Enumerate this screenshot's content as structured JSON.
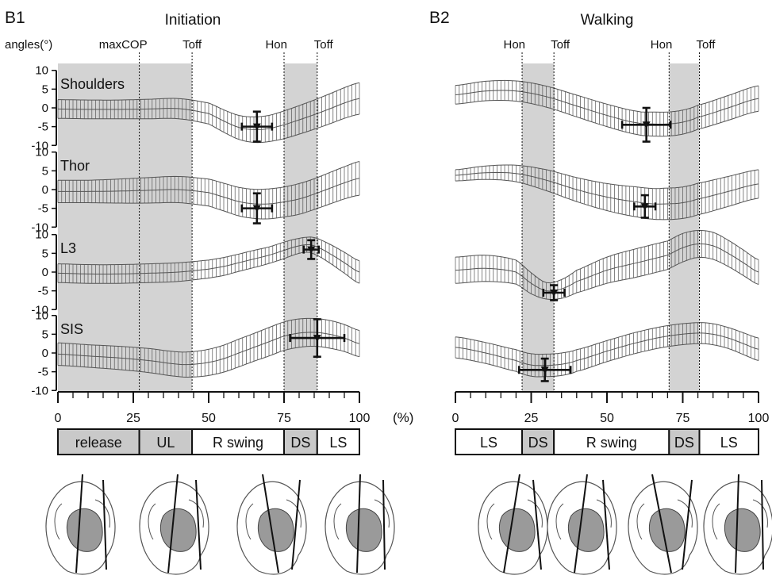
{
  "panels": [
    {
      "label": "B1",
      "title": "Initiation",
      "yaxis_label": "angles(°)",
      "events": [
        {
          "label": "maxCOP",
          "x": 27
        },
        {
          "label": "Toff",
          "x": 44.5
        },
        {
          "label": "Hon",
          "x": 75
        },
        {
          "label": "Toff",
          "x": 86
        }
      ],
      "shaded_x": [
        [
          0,
          44.5
        ],
        [
          75,
          86
        ]
      ],
      "phases": [
        {
          "label": "release",
          "from": 0,
          "to": 27,
          "shaded": true
        },
        {
          "label": "UL",
          "from": 27,
          "to": 44.5,
          "shaded": true
        },
        {
          "label": "R swing",
          "from": 44.5,
          "to": 75,
          "shaded": false
        },
        {
          "label": "DS",
          "from": 75,
          "to": 86,
          "shaded": true
        },
        {
          "label": "LS",
          "from": 86,
          "to": 100,
          "shaded": false
        }
      ],
      "body_sketch_count": 4
    },
    {
      "label": "B2",
      "title": "Walking",
      "yaxis_label": "",
      "events": [
        {
          "label": "Hon",
          "x": 22
        },
        {
          "label": "Toff",
          "x": 32.5
        },
        {
          "label": "Hon",
          "x": 70.5
        },
        {
          "label": "Toff",
          "x": 80.5
        }
      ],
      "shaded_x": [
        [
          22,
          32.5
        ],
        [
          70.5,
          80.5
        ]
      ],
      "phases": [
        {
          "label": "LS",
          "from": 0,
          "to": 22,
          "shaded": false
        },
        {
          "label": "DS",
          "from": 22,
          "to": 32.5,
          "shaded": true
        },
        {
          "label": "R swing",
          "from": 32.5,
          "to": 70.5,
          "shaded": false
        },
        {
          "label": "DS",
          "from": 70.5,
          "to": 80.5,
          "shaded": true
        },
        {
          "label": "LS",
          "from": 80.5,
          "to": 100,
          "shaded": false
        }
      ],
      "body_sketch_count": 4
    }
  ],
  "x_unit": "(%)",
  "chart_data": {
    "type": "line",
    "x_range": [
      0,
      100
    ],
    "x_ticks": [
      0,
      25,
      50,
      75,
      100
    ],
    "y_ticks": [
      -10,
      -5,
      0,
      5,
      10
    ],
    "y_range": [
      -11,
      11
    ],
    "subplots": [
      {
        "panel": "B1",
        "segment": "Shoulders",
        "x": [
          0,
          10,
          20,
          30,
          40,
          50,
          55,
          60,
          65,
          70,
          75,
          80,
          85,
          90,
          95,
          100
        ],
        "mean": [
          -0.3,
          -0.4,
          -0.4,
          -0.3,
          -0.2,
          -1.5,
          -3.5,
          -5.2,
          -5.8,
          -5.5,
          -4.5,
          -3.2,
          -1.8,
          -0.3,
          1.3,
          2.5
        ],
        "sd": [
          2.5,
          2.5,
          2.5,
          2.6,
          2.7,
          2.8,
          3.0,
          3.2,
          3.4,
          3.5,
          3.7,
          3.8,
          3.9,
          4.0,
          4.1,
          4.2
        ],
        "marker": {
          "x": 66,
          "y": -5,
          "x_err": 5,
          "y_err": 4
        }
      },
      {
        "panel": "B1",
        "segment": "Thor",
        "x": [
          0,
          10,
          20,
          30,
          40,
          50,
          55,
          60,
          65,
          70,
          75,
          80,
          85,
          90,
          95,
          100
        ],
        "mean": [
          -0.5,
          -0.5,
          -0.4,
          -0.2,
          0,
          -0.8,
          -2,
          -3.2,
          -3.8,
          -3.8,
          -3.3,
          -2.5,
          -1.2,
          0.3,
          1.8,
          3
        ],
        "sd": [
          3,
          3,
          3.2,
          3.4,
          3.5,
          3.6,
          3.7,
          3.8,
          3.9,
          4,
          4,
          4.1,
          4.1,
          4.2,
          4.3,
          4.5
        ],
        "marker": {
          "x": 66,
          "y": -5,
          "x_err": 5,
          "y_err": 4
        }
      },
      {
        "panel": "B1",
        "segment": "L3",
        "x": [
          0,
          10,
          20,
          30,
          40,
          50,
          55,
          60,
          65,
          70,
          75,
          80,
          83,
          85,
          90,
          95,
          100
        ],
        "mean": [
          -0.3,
          -0.5,
          -0.5,
          -0.3,
          0,
          0.8,
          1.5,
          2.5,
          3.5,
          4.5,
          5.8,
          7,
          7.3,
          7,
          5,
          2.5,
          0
        ],
        "sd": [
          2.5,
          2.5,
          2.5,
          2.5,
          2.5,
          2.4,
          2.4,
          2.3,
          2.3,
          2.2,
          2.2,
          2.0,
          2.0,
          2.2,
          2.5,
          2.8,
          3
        ],
        "marker": {
          "x": 84,
          "y": 6,
          "x_err": 2.5,
          "y_err": 2.5
        }
      },
      {
        "panel": "B1",
        "segment": "SIS",
        "x": [
          0,
          10,
          20,
          30,
          40,
          45,
          50,
          55,
          60,
          65,
          70,
          75,
          80,
          85,
          90,
          95,
          100
        ],
        "mean": [
          -0.3,
          -0.8,
          -1.3,
          -2,
          -3,
          -3,
          -2.5,
          -1.5,
          0,
          1.5,
          3,
          4.5,
          5.3,
          5.5,
          5,
          4,
          2.5
        ],
        "sd": [
          3,
          3,
          3.1,
          3.2,
          3.3,
          3.4,
          3.5,
          3.6,
          3.7,
          3.7,
          3.8,
          3.8,
          3.8,
          3.7,
          3.7,
          3.6,
          3.5
        ],
        "marker": {
          "x": 86,
          "y": 4,
          "x_err": 9,
          "y_err": 5
        }
      },
      {
        "panel": "B2",
        "segment": "Shoulders",
        "x": [
          0,
          10,
          20,
          30,
          40,
          50,
          60,
          65,
          70,
          75,
          80,
          90,
          100
        ],
        "mean": [
          3.5,
          4.5,
          4.5,
          3,
          0.5,
          -2,
          -4,
          -4.3,
          -4.3,
          -3.8,
          -2.5,
          0,
          2.5
        ],
        "sd": [
          2.5,
          2.6,
          2.7,
          2.8,
          2.9,
          3,
          3.1,
          3.2,
          3.2,
          3.2,
          3.2,
          3.3,
          3.4
        ],
        "marker": {
          "x": 63,
          "y": -4.5,
          "x_err": 8,
          "y_err": 4.5
        }
      },
      {
        "panel": "B2",
        "segment": "Thor",
        "x": [
          0,
          10,
          20,
          30,
          40,
          50,
          60,
          65,
          70,
          75,
          80,
          90,
          100
        ],
        "mean": [
          3.8,
          4.5,
          4.3,
          2.5,
          0,
          -2,
          -3.3,
          -3.8,
          -3.8,
          -3.5,
          -2.5,
          -0.5,
          1.5
        ],
        "sd": [
          1.5,
          1.8,
          2.2,
          2.8,
          3.2,
          3.6,
          4,
          4.1,
          4.2,
          4.2,
          4.2,
          4,
          3.8
        ],
        "marker": {
          "x": 62.5,
          "y": -4.5,
          "x_err": 3.5,
          "y_err": 3
        }
      },
      {
        "panel": "B2",
        "segment": "L3",
        "x": [
          0,
          10,
          20,
          25,
          30,
          35,
          40,
          50,
          60,
          70,
          75,
          80,
          85,
          90,
          95,
          100
        ],
        "mean": [
          0.5,
          1,
          0,
          -3,
          -5,
          -4.5,
          -2.5,
          0.5,
          2.5,
          4.5,
          6.5,
          7.5,
          7,
          5,
          2.5,
          0
        ],
        "sd": [
          3.5,
          3.5,
          3.2,
          2.8,
          2.2,
          2.5,
          3,
          3.5,
          3.8,
          3.8,
          3.8,
          3.6,
          3.6,
          3.5,
          3.4,
          3.3
        ],
        "marker": {
          "x": 32.5,
          "y": -5.5,
          "x_err": 3.5,
          "y_err": 2
        }
      },
      {
        "panel": "B2",
        "segment": "SIS",
        "x": [
          0,
          10,
          20,
          25,
          30,
          35,
          40,
          50,
          60,
          70,
          80,
          85,
          90,
          95,
          100
        ],
        "mean": [
          1.5,
          0,
          -2,
          -3.2,
          -3.3,
          -3,
          -2,
          0.5,
          2.8,
          4.5,
          5.3,
          5,
          4,
          2.5,
          1
        ],
        "sd": [
          2.8,
          2.8,
          2.9,
          3.0,
          3.0,
          3.0,
          2.9,
          2.8,
          2.8,
          2.8,
          2.8,
          2.8,
          2.8,
          2.9,
          3.0
        ],
        "marker": {
          "x": 29.5,
          "y": -4.5,
          "x_err": 8.5,
          "y_err": 3
        }
      }
    ]
  }
}
